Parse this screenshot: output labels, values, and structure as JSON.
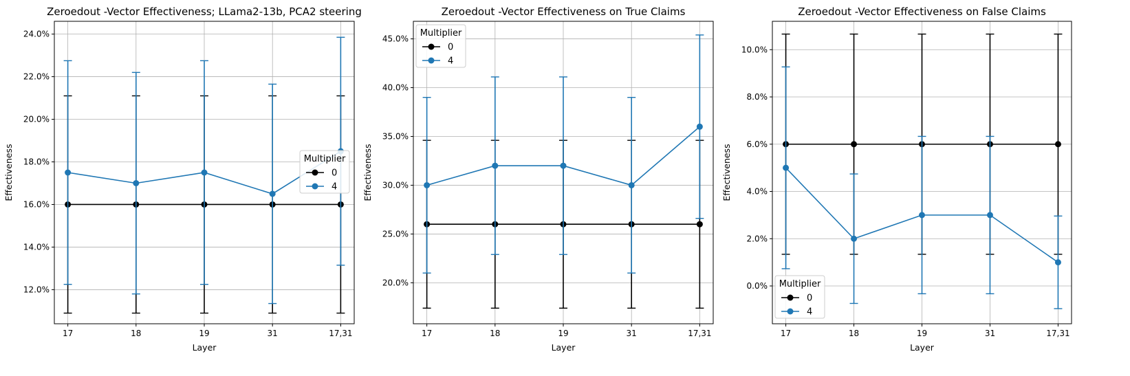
{
  "chart_data": [
    {
      "type": "line",
      "title": "Zeroedout -Vector Effectiveness; LLama2-13b, PCA2 steering",
      "xlabel": "Layer",
      "ylabel": "Effectiveness",
      "categories": [
        "17",
        "18",
        "19",
        "31",
        "17,31"
      ],
      "ylim": [
        0.104,
        0.246
      ],
      "yticks": [
        0.12,
        0.14,
        0.16,
        0.18,
        0.2,
        0.22,
        0.24
      ],
      "ytick_labels": [
        "12.0%",
        "14.0%",
        "16.0%",
        "18.0%",
        "20.0%",
        "22.0%",
        "24.0%"
      ],
      "grid": true,
      "legend": {
        "title": "Multiplier",
        "position": "center-right"
      },
      "series": [
        {
          "name": "0",
          "color": "#000000",
          "values": [
            0.16,
            0.16,
            0.16,
            0.16,
            0.16
          ],
          "err_low": [
            0.109,
            0.109,
            0.109,
            0.109,
            0.109
          ],
          "err_high": [
            0.211,
            0.211,
            0.211,
            0.211,
            0.211
          ]
        },
        {
          "name": "4",
          "color": "#1f77b4",
          "values": [
            0.175,
            0.17,
            0.175,
            0.165,
            0.185
          ],
          "err_low": [
            0.1225,
            0.118,
            0.1225,
            0.1135,
            0.1315
          ],
          "err_high": [
            0.2275,
            0.222,
            0.2275,
            0.2165,
            0.2385
          ]
        }
      ]
    },
    {
      "type": "line",
      "title": "Zeroedout -Vector Effectiveness on True Claims",
      "xlabel": "Layer",
      "ylabel": "Effectiveness",
      "categories": [
        "17",
        "18",
        "19",
        "31",
        "17,31"
      ],
      "ylim": [
        0.158,
        0.468
      ],
      "yticks": [
        0.2,
        0.25,
        0.3,
        0.35,
        0.4,
        0.45
      ],
      "ytick_labels": [
        "20.0%",
        "25.0%",
        "30.0%",
        "35.0%",
        "40.0%",
        "45.0%"
      ],
      "grid": true,
      "legend": {
        "title": "Multiplier",
        "position": "top-left"
      },
      "series": [
        {
          "name": "0",
          "color": "#000000",
          "values": [
            0.26,
            0.26,
            0.26,
            0.26,
            0.26
          ],
          "err_low": [
            0.174,
            0.174,
            0.174,
            0.174,
            0.174
          ],
          "err_high": [
            0.346,
            0.346,
            0.346,
            0.346,
            0.346
          ]
        },
        {
          "name": "4",
          "color": "#1f77b4",
          "values": [
            0.3,
            0.32,
            0.32,
            0.3,
            0.36
          ],
          "err_low": [
            0.21,
            0.229,
            0.229,
            0.21,
            0.266
          ],
          "err_high": [
            0.39,
            0.411,
            0.411,
            0.39,
            0.454
          ]
        }
      ]
    },
    {
      "type": "line",
      "title": "Zeroedout -Vector Effectiveness on False Claims",
      "xlabel": "Layer",
      "ylabel": "Effectiveness",
      "categories": [
        "17",
        "18",
        "19",
        "31",
        "17,31"
      ],
      "ylim": [
        -0.016,
        0.112
      ],
      "yticks": [
        0.0,
        0.02,
        0.04,
        0.06,
        0.08,
        0.1
      ],
      "ytick_labels": [
        "0.0%",
        "2.0%",
        "4.0%",
        "6.0%",
        "8.0%",
        "10.0%"
      ],
      "grid": true,
      "legend": {
        "title": "Multiplier",
        "position": "bottom-left"
      },
      "series": [
        {
          "name": "0",
          "color": "#000000",
          "values": [
            0.06,
            0.06,
            0.06,
            0.06,
            0.06
          ],
          "err_low": [
            0.0134,
            0.0134,
            0.0134,
            0.0134,
            0.0134
          ],
          "err_high": [
            0.1066,
            0.1066,
            0.1066,
            0.1066,
            0.1066
          ]
        },
        {
          "name": "4",
          "color": "#1f77b4",
          "values": [
            0.05,
            0.02,
            0.03,
            0.03,
            0.01
          ],
          "err_low": [
            0.0073,
            -0.0074,
            -0.0033,
            -0.0033,
            -0.0096
          ],
          "err_high": [
            0.0927,
            0.0474,
            0.0633,
            0.0633,
            0.0296
          ]
        }
      ]
    }
  ]
}
